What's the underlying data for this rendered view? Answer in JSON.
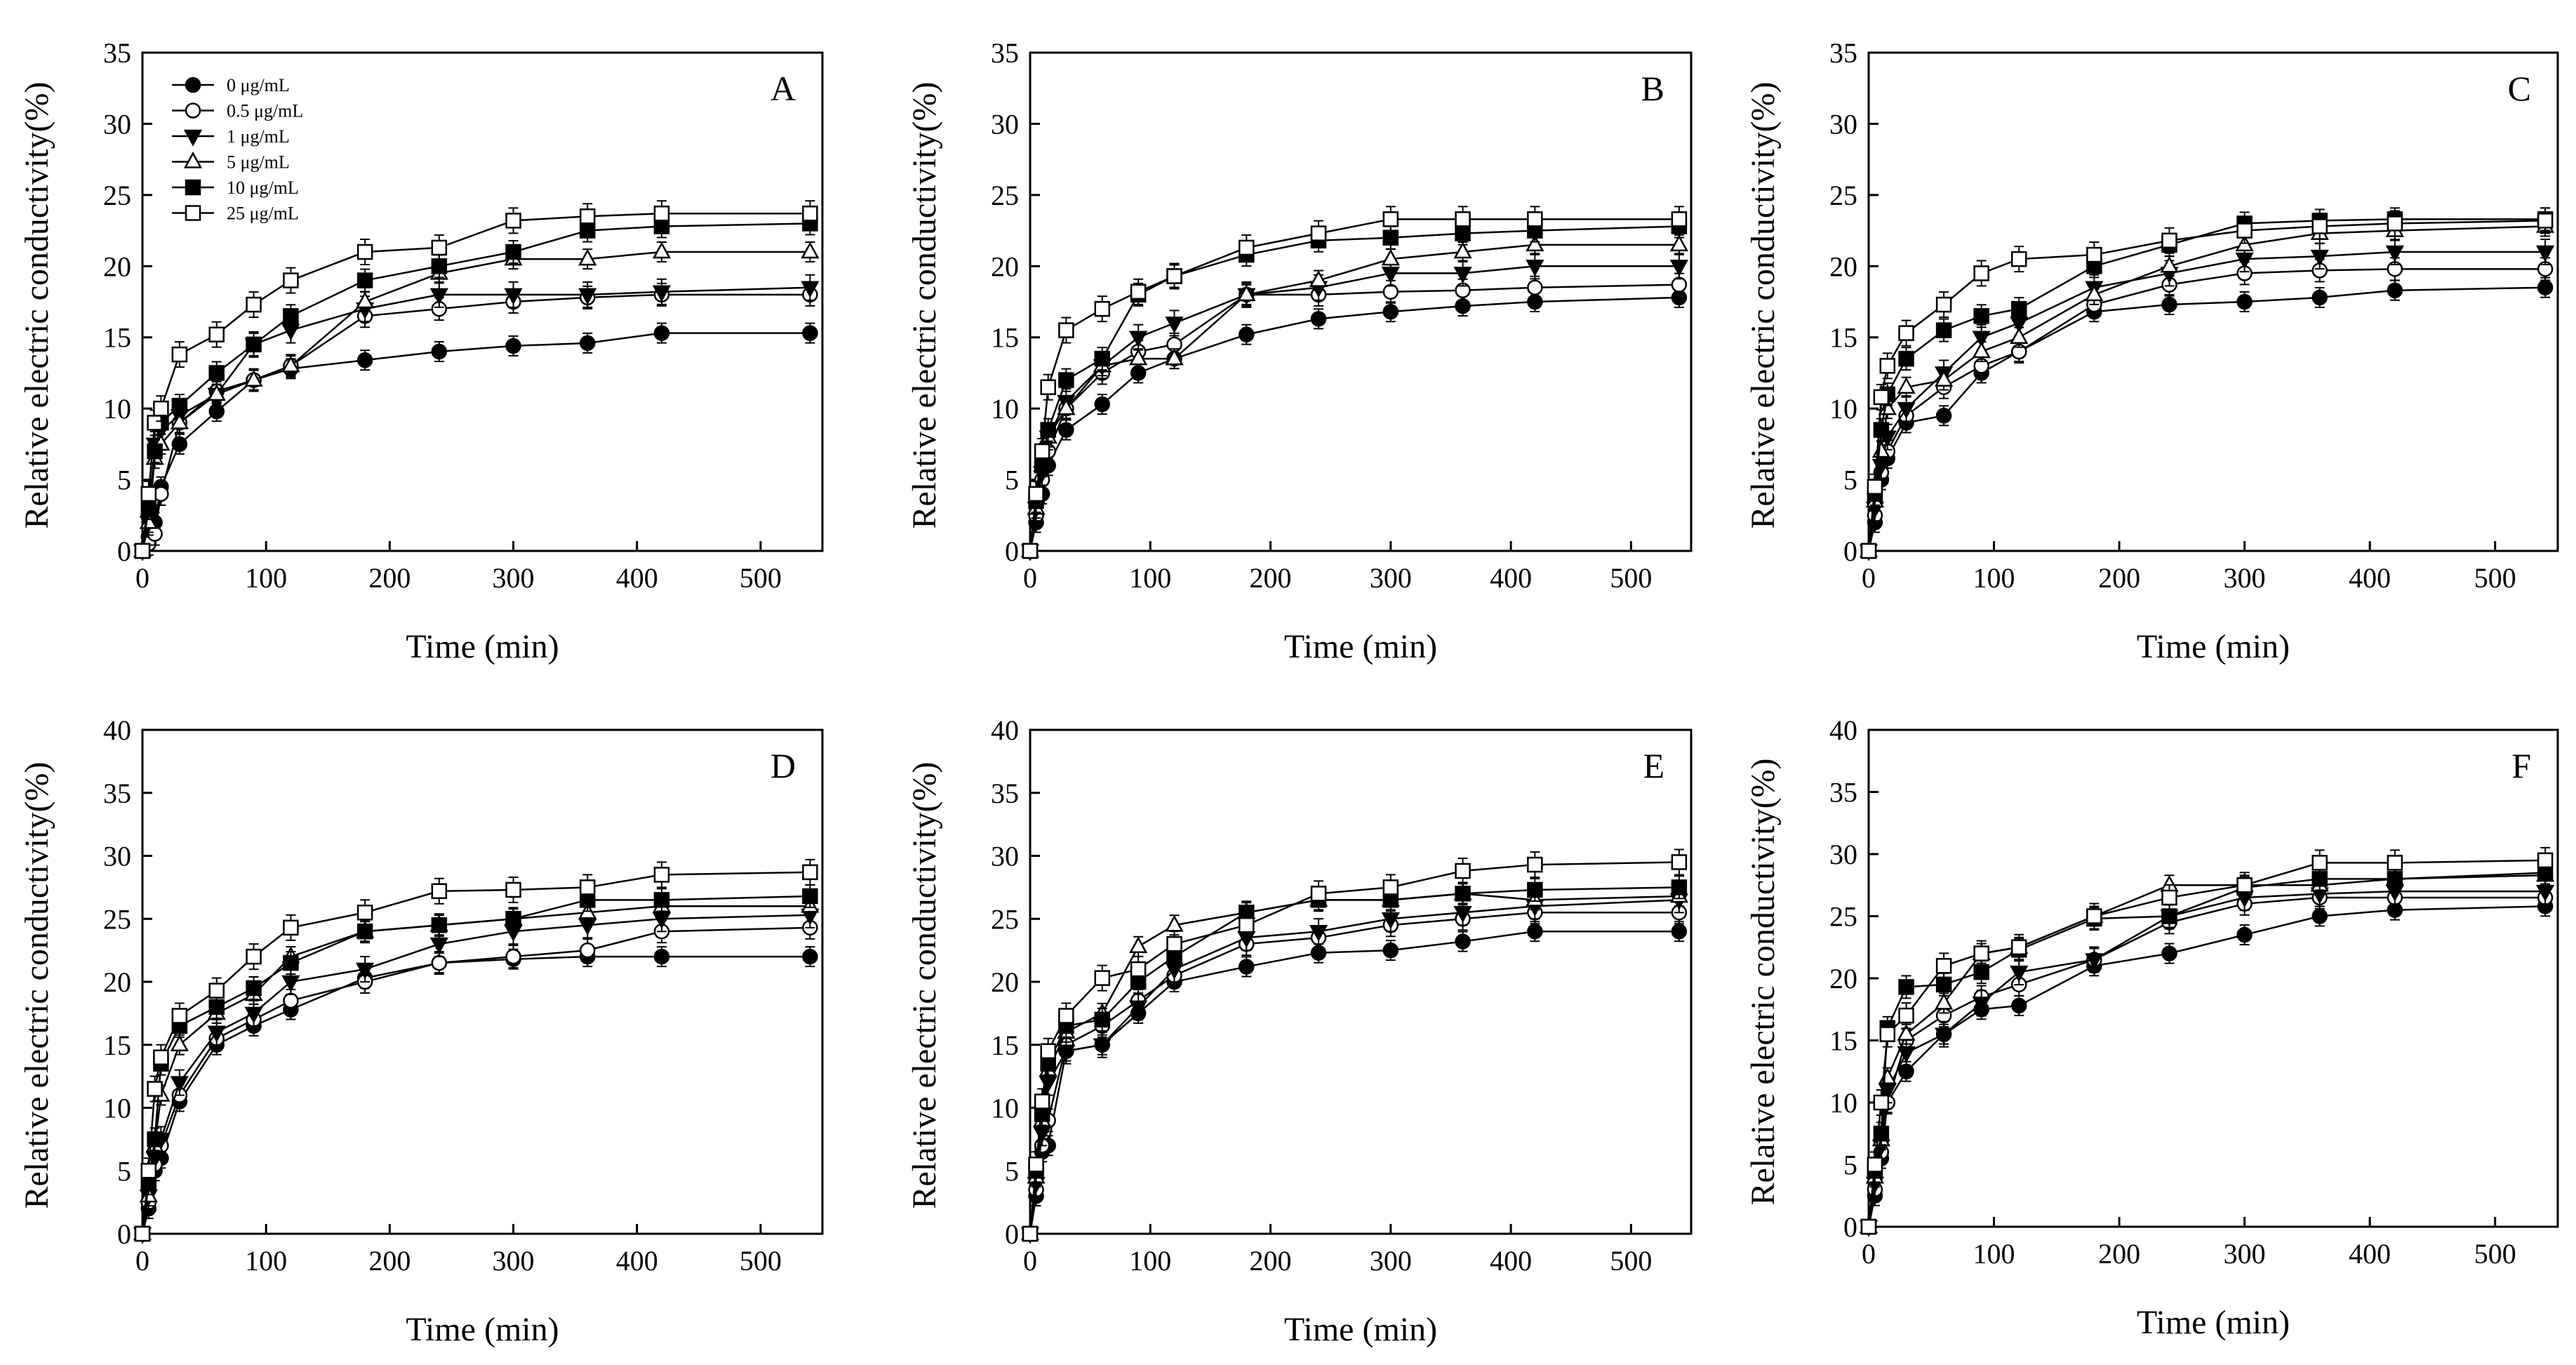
{
  "chart_data": [
    {
      "type": "line",
      "panel_label": "A",
      "xlabel": "Time (min)",
      "ylabel": "Relative electric conductivity(%)",
      "xlim": [
        0,
        550
      ],
      "ylim": [
        0,
        35
      ],
      "xticks": [
        0,
        100,
        200,
        300,
        400,
        500
      ],
      "yticks": [
        0,
        5,
        10,
        15,
        20,
        25,
        30,
        35
      ],
      "legend": "top-left",
      "x": [
        0,
        5,
        10,
        15,
        30,
        60,
        90,
        120,
        180,
        240,
        300,
        360,
        420,
        540
      ],
      "series": [
        {
          "name": "0 μg/mL",
          "marker": "filled-circle",
          "values": [
            0,
            1.0,
            2.0,
            4.5,
            7.5,
            9.8,
            12.0,
            12.8,
            13.4,
            14.0,
            14.4,
            14.6,
            15.3,
            15.3
          ]
        },
        {
          "name": "0.5 μg/mL",
          "marker": "open-circle",
          "values": [
            0,
            0.5,
            1.2,
            4.0,
            9.0,
            11.2,
            12.0,
            13.0,
            16.5,
            17.0,
            17.5,
            17.8,
            18.0,
            18.0
          ]
        },
        {
          "name": "1 μg/mL",
          "marker": "filled-triangle-down",
          "values": [
            0,
            2.0,
            7.5,
            8.5,
            9.5,
            11.0,
            14.5,
            15.5,
            17.0,
            18.0,
            18.0,
            18.0,
            18.2,
            18.5
          ]
        },
        {
          "name": "5 μg/mL",
          "marker": "open-triangle-up",
          "values": [
            0,
            2.0,
            6.5,
            7.5,
            9.0,
            11.0,
            12.0,
            13.0,
            17.5,
            19.5,
            20.5,
            20.5,
            21.0,
            21.0
          ]
        },
        {
          "name": "10 μg/mL",
          "marker": "filled-square",
          "values": [
            0,
            3.0,
            7.0,
            9.0,
            10.2,
            12.5,
            14.5,
            16.5,
            19.0,
            20.0,
            21.0,
            22.5,
            22.8,
            23.0
          ]
        },
        {
          "name": "25 μg/mL",
          "marker": "open-square",
          "values": [
            0,
            4.0,
            9.0,
            10.0,
            13.8,
            15.2,
            17.3,
            19.0,
            21.0,
            21.3,
            23.2,
            23.5,
            23.7,
            23.7
          ]
        }
      ]
    },
    {
      "type": "line",
      "panel_label": "B",
      "xlabel": "Time (min)",
      "ylabel": "Relative electric conductivity(%)",
      "xlim": [
        0,
        550
      ],
      "ylim": [
        0,
        35
      ],
      "xticks": [
        0,
        100,
        200,
        300,
        400,
        500
      ],
      "yticks": [
        0,
        5,
        10,
        15,
        20,
        25,
        30,
        35
      ],
      "x": [
        0,
        5,
        10,
        15,
        30,
        60,
        90,
        120,
        180,
        240,
        300,
        360,
        420,
        540
      ],
      "series": [
        {
          "name": "0 μg/mL",
          "marker": "filled-circle",
          "values": [
            0,
            2.0,
            4.0,
            6.0,
            8.5,
            10.3,
            12.5,
            13.5,
            15.2,
            16.3,
            16.8,
            17.2,
            17.5,
            17.8
          ]
        },
        {
          "name": "0.5 μg/mL",
          "marker": "open-circle",
          "values": [
            0,
            2.5,
            5.0,
            7.0,
            10.0,
            12.5,
            14.0,
            14.5,
            18.0,
            18.0,
            18.2,
            18.3,
            18.5,
            18.7
          ]
        },
        {
          "name": "1 μg/mL",
          "marker": "filled-triangle-down",
          "values": [
            0,
            3.0,
            5.5,
            8.0,
            10.5,
            13.0,
            15.0,
            16.0,
            18.0,
            18.5,
            19.5,
            19.5,
            20.0,
            20.0
          ]
        },
        {
          "name": "5 μg/mL",
          "marker": "open-triangle-up",
          "values": [
            0,
            3.0,
            6.0,
            8.0,
            10.0,
            13.0,
            13.5,
            13.5,
            18.0,
            19.0,
            20.5,
            21.0,
            21.5,
            21.5
          ]
        },
        {
          "name": "10 μg/mL",
          "marker": "filled-square",
          "values": [
            0,
            3.5,
            6.0,
            8.5,
            12.0,
            13.5,
            18.0,
            19.3,
            20.8,
            21.8,
            22.0,
            22.3,
            22.5,
            22.8
          ]
        },
        {
          "name": "25 μg/mL",
          "marker": "open-square",
          "values": [
            0,
            4.0,
            7.0,
            11.5,
            15.5,
            17.0,
            18.2,
            19.3,
            21.3,
            22.3,
            23.3,
            23.3,
            23.3,
            23.3
          ]
        }
      ]
    },
    {
      "type": "line",
      "panel_label": "C",
      "xlabel": "Time (min)",
      "ylabel": "Relative electric conductivity(%)",
      "xlim": [
        0,
        550
      ],
      "ylim": [
        0,
        35
      ],
      "xticks": [
        0,
        100,
        200,
        300,
        400,
        500
      ],
      "yticks": [
        0,
        5,
        10,
        15,
        20,
        25,
        30,
        35
      ],
      "x": [
        0,
        5,
        10,
        15,
        30,
        60,
        90,
        120,
        180,
        240,
        300,
        360,
        420,
        540
      ],
      "series": [
        {
          "name": "0 μg/mL",
          "marker": "filled-circle",
          "values": [
            0,
            2.0,
            5.0,
            6.5,
            9.0,
            9.5,
            12.5,
            14.0,
            16.8,
            17.3,
            17.5,
            17.8,
            18.3,
            18.5
          ]
        },
        {
          "name": "0.5 μg/mL",
          "marker": "open-circle",
          "values": [
            0,
            2.5,
            5.5,
            7.0,
            9.5,
            11.5,
            13.0,
            14.0,
            17.3,
            18.7,
            19.5,
            19.7,
            19.8,
            19.8
          ]
        },
        {
          "name": "1 μg/mL",
          "marker": "filled-triangle-down",
          "values": [
            0,
            3.0,
            6.0,
            8.0,
            10.0,
            12.5,
            15.0,
            16.0,
            18.5,
            19.5,
            20.5,
            20.7,
            21.0,
            21.0
          ]
        },
        {
          "name": "5 μg/mL",
          "marker": "open-triangle-up",
          "values": [
            0,
            3.5,
            7.0,
            10.0,
            11.5,
            12.0,
            14.0,
            15.0,
            18.0,
            20.0,
            21.5,
            22.3,
            22.5,
            22.8
          ]
        },
        {
          "name": "10 μg/mL",
          "marker": "filled-square",
          "values": [
            0,
            4.0,
            8.5,
            11.0,
            13.5,
            15.5,
            16.5,
            17.0,
            20.0,
            21.5,
            23.0,
            23.2,
            23.3,
            23.3
          ]
        },
        {
          "name": "25 μg/mL",
          "marker": "open-square",
          "values": [
            0,
            4.5,
            10.8,
            13.0,
            15.3,
            17.3,
            19.5,
            20.5,
            20.8,
            21.8,
            22.5,
            22.8,
            23.0,
            23.2
          ]
        }
      ]
    },
    {
      "type": "line",
      "panel_label": "D",
      "xlabel": "Time (min)",
      "ylabel": "Relative electric conductivity(%)",
      "xlim": [
        0,
        550
      ],
      "ylim": [
        0,
        40
      ],
      "xticks": [
        0,
        100,
        200,
        300,
        400,
        500
      ],
      "yticks": [
        0,
        5,
        10,
        15,
        20,
        25,
        30,
        35,
        40
      ],
      "x": [
        0,
        5,
        10,
        15,
        30,
        60,
        90,
        120,
        180,
        240,
        300,
        360,
        420,
        540
      ],
      "series": [
        {
          "name": "0 μg/mL",
          "marker": "filled-circle",
          "values": [
            0,
            2.0,
            5.0,
            6.0,
            10.5,
            15.0,
            16.5,
            17.8,
            20.3,
            21.5,
            21.8,
            22.0,
            22.0,
            22.0
          ]
        },
        {
          "name": "0.5 μg/mL",
          "marker": "open-circle",
          "values": [
            0,
            2.5,
            5.5,
            7.0,
            11.0,
            15.5,
            17.0,
            18.5,
            20.0,
            21.5,
            22.0,
            22.5,
            24.0,
            24.3
          ]
        },
        {
          "name": "1 μg/mL",
          "marker": "filled-triangle-down",
          "values": [
            0,
            3.0,
            6.0,
            7.5,
            12.0,
            16.0,
            17.5,
            20.0,
            21.0,
            23.0,
            24.0,
            24.5,
            25.0,
            25.3
          ]
        },
        {
          "name": "5 μg/mL",
          "marker": "open-triangle-up",
          "values": [
            0,
            3.0,
            7.0,
            11.0,
            15.0,
            17.5,
            19.0,
            22.0,
            24.0,
            24.5,
            25.0,
            25.5,
            26.0,
            26.0
          ]
        },
        {
          "name": "10 μg/mL",
          "marker": "filled-square",
          "values": [
            0,
            4.0,
            7.5,
            13.5,
            16.5,
            18.0,
            19.5,
            21.5,
            24.0,
            24.5,
            25.0,
            26.5,
            26.5,
            26.8
          ]
        },
        {
          "name": "25 μg/mL",
          "marker": "open-square",
          "values": [
            0,
            5.0,
            11.5,
            14.0,
            17.3,
            19.3,
            22.0,
            24.3,
            25.5,
            27.2,
            27.3,
            27.5,
            28.5,
            28.7
          ]
        }
      ]
    },
    {
      "type": "line",
      "panel_label": "E",
      "xlabel": "Time (min)",
      "ylabel": "Relative electric conductivity(%)",
      "xlim": [
        0,
        550
      ],
      "ylim": [
        0,
        40
      ],
      "xticks": [
        0,
        100,
        200,
        300,
        400,
        500
      ],
      "yticks": [
        0,
        5,
        10,
        15,
        20,
        25,
        30,
        35,
        40
      ],
      "x": [
        0,
        5,
        10,
        15,
        30,
        60,
        90,
        120,
        180,
        240,
        300,
        360,
        420,
        540
      ],
      "series": [
        {
          "name": "0 μg/mL",
          "marker": "filled-circle",
          "values": [
            0,
            3.0,
            6.5,
            7.0,
            14.5,
            15.0,
            17.5,
            20.0,
            21.2,
            22.3,
            22.5,
            23.2,
            24.0,
            24.0
          ]
        },
        {
          "name": "0.5 μg/mL",
          "marker": "open-circle",
          "values": [
            0,
            3.5,
            7.0,
            9.0,
            15.0,
            16.5,
            18.5,
            20.5,
            23.0,
            23.5,
            24.5,
            25.0,
            25.5,
            25.5
          ]
        },
        {
          "name": "1 μg/mL",
          "marker": "filled-triangle-down",
          "values": [
            0,
            4.0,
            8.0,
            12.0,
            14.5,
            15.0,
            18.0,
            21.0,
            23.5,
            24.0,
            25.0,
            25.5,
            26.0,
            26.5
          ]
        },
        {
          "name": "5 μg/mL",
          "marker": "open-triangle-up",
          "values": [
            0,
            4.5,
            9.0,
            13.0,
            16.0,
            17.5,
            22.8,
            24.5,
            25.5,
            26.5,
            26.5,
            27.0,
            26.5,
            26.8
          ]
        },
        {
          "name": "10 μg/mL",
          "marker": "filled-square",
          "values": [
            0,
            5.0,
            9.5,
            13.5,
            16.5,
            17.0,
            20.0,
            22.0,
            25.5,
            26.5,
            26.5,
            27.0,
            27.3,
            27.5
          ]
        },
        {
          "name": "25 μg/mL",
          "marker": "open-square",
          "values": [
            0,
            5.5,
            10.5,
            14.5,
            17.3,
            20.3,
            21.0,
            23.0,
            24.5,
            27.0,
            27.5,
            28.8,
            29.3,
            29.5
          ]
        }
      ]
    },
    {
      "type": "line",
      "panel_label": "F",
      "xlabel": "Time (min)",
      "ylabel": "Relative electric conductivity(%)",
      "xlim": [
        0,
        550
      ],
      "ylim": [
        0,
        40
      ],
      "xticks": [
        0,
        100,
        200,
        300,
        400,
        500
      ],
      "yticks": [
        0,
        5,
        10,
        15,
        20,
        25,
        30,
        35,
        40
      ],
      "x": [
        0,
        5,
        10,
        15,
        30,
        60,
        90,
        120,
        180,
        240,
        300,
        360,
        420,
        540
      ],
      "series": [
        {
          "name": "0 μg/mL",
          "marker": "filled-circle",
          "values": [
            0,
            2.5,
            5.5,
            10.0,
            12.5,
            15.5,
            17.5,
            17.8,
            21.0,
            22.0,
            23.5,
            25.0,
            25.5,
            25.8
          ]
        },
        {
          "name": "0.5 μg/mL",
          "marker": "open-circle",
          "values": [
            0,
            3.0,
            6.0,
            10.0,
            15.0,
            17.0,
            18.5,
            19.5,
            21.5,
            24.5,
            26.0,
            26.5,
            26.5,
            26.5
          ]
        },
        {
          "name": "1 μg/mL",
          "marker": "filled-triangle-down",
          "values": [
            0,
            3.5,
            6.5,
            11.0,
            14.0,
            15.5,
            18.0,
            20.5,
            21.5,
            25.0,
            26.5,
            26.8,
            27.0,
            27.0
          ]
        },
        {
          "name": "5 μg/mL",
          "marker": "open-triangle-up",
          "values": [
            0,
            4.0,
            7.0,
            12.0,
            15.5,
            18.0,
            22.0,
            22.5,
            25.0,
            27.5,
            27.5,
            27.5,
            28.0,
            28.3
          ]
        },
        {
          "name": "10 μg/mL",
          "marker": "filled-square",
          "values": [
            0,
            4.5,
            7.5,
            16.0,
            19.3,
            19.5,
            20.5,
            22.3,
            24.8,
            25.0,
            27.3,
            28.0,
            28.0,
            28.5
          ]
        },
        {
          "name": "25 μg/mL",
          "marker": "open-square",
          "values": [
            0,
            5.0,
            10.0,
            15.5,
            17.0,
            21.0,
            22.0,
            22.5,
            25.0,
            26.5,
            27.5,
            29.3,
            29.3,
            29.5
          ]
        }
      ]
    }
  ]
}
